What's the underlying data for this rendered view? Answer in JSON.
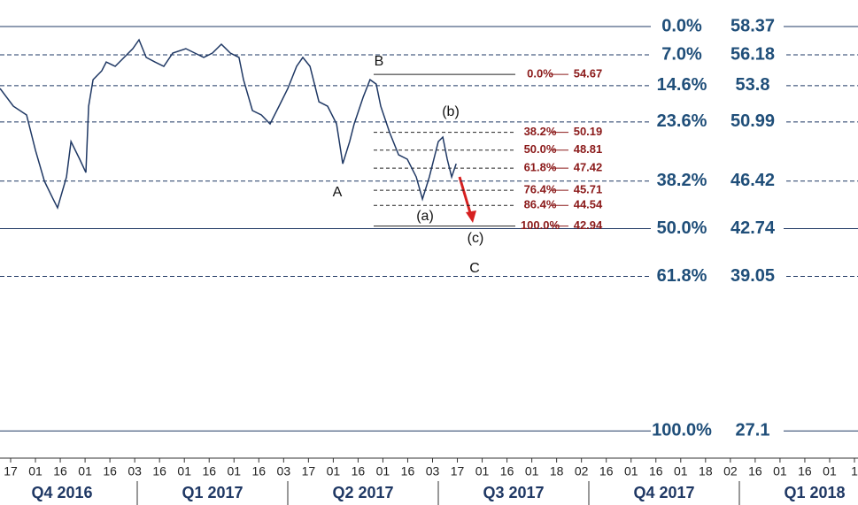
{
  "chart_data": {
    "type": "line",
    "ylim": [
      25,
      60.42
    ],
    "xlim": [
      -0.43,
      34.14
    ],
    "price": {
      "color": "#1f3864",
      "x": [
        -0.43,
        0.11,
        0.64,
        1.0,
        1.36,
        1.71,
        1.89,
        2.25,
        2.43,
        2.78,
        3.03,
        3.14,
        3.32,
        3.67,
        3.85,
        4.21,
        4.57,
        4.92,
        5.17,
        5.46,
        5.81,
        6.17,
        6.53,
        7.06,
        7.42,
        7.78,
        8.13,
        8.49,
        8.85,
        9.2,
        9.38,
        9.74,
        10.1,
        10.45,
        10.81,
        11.17,
        11.52,
        11.77,
        12.06,
        12.42,
        12.77,
        13.13,
        13.38,
        13.66,
        13.84,
        14.2,
        14.48,
        14.73,
        14.91,
        15.27,
        15.63,
        15.98,
        16.34,
        16.59,
        16.87,
        17.23,
        17.41,
        17.59,
        17.77,
        17.95
      ],
      "values": [
        53.58,
        52.21,
        51.53,
        48.79,
        46.4,
        45.03,
        44.35,
        46.74,
        49.47,
        48.11,
        47.08,
        52.21,
        54.26,
        54.94,
        55.63,
        55.29,
        55.98,
        56.66,
        57.34,
        55.98,
        55.63,
        55.29,
        56.32,
        56.66,
        56.32,
        55.98,
        56.32,
        57.0,
        56.32,
        55.98,
        54.26,
        51.87,
        51.53,
        50.84,
        52.21,
        53.58,
        55.29,
        55.98,
        55.29,
        52.55,
        52.21,
        50.84,
        47.76,
        49.47,
        50.84,
        52.9,
        54.26,
        53.92,
        52.21,
        50.16,
        48.45,
        48.11,
        46.74,
        45.03,
        46.74,
        49.47,
        49.82,
        48.11,
        46.74,
        47.76
      ]
    },
    "major_levels": [
      {
        "label": "0.0%",
        "value": 58.37
      },
      {
        "label": "7.0%",
        "value": 56.18
      },
      {
        "label": "14.6%",
        "value": 53.8
      },
      {
        "label": "23.6%",
        "value": 50.99
      },
      {
        "label": "38.2%",
        "value": 46.42
      },
      {
        "label": "50.0%",
        "value": 42.74
      },
      {
        "label": "61.8%",
        "value": 39.05
      },
      {
        "label": "100.0%",
        "value": 27.1
      }
    ],
    "minor_levels": [
      {
        "label": "0.0%",
        "value": 54.67
      },
      {
        "label": "38.2%",
        "value": 50.19
      },
      {
        "label": "50.0%",
        "value": 48.81
      },
      {
        "label": "61.8%",
        "value": 47.42
      },
      {
        "label": "76.4%",
        "value": 45.71
      },
      {
        "label": "86.4%",
        "value": 44.54
      },
      {
        "label": "100.0%",
        "value": 42.94
      }
    ],
    "annotations": [
      "B",
      "A",
      "(b)",
      "(a)",
      "(c)",
      "C"
    ],
    "x_tick_labels": [
      "17",
      "01",
      "16",
      "01",
      "16",
      "03",
      "16",
      "01",
      "16",
      "01",
      "16",
      "03",
      "17",
      "01",
      "16",
      "01",
      "16",
      "03",
      "17",
      "01",
      "16",
      "01",
      "18",
      "02",
      "16",
      "01",
      "16",
      "01",
      "18",
      "02",
      "16",
      "01",
      "16",
      "01",
      "1"
    ],
    "quarters": [
      "Q4 2016",
      "Q1 2017",
      "Q2 2017",
      "Q3 2017",
      "Q4 2017",
      "Q1 2018"
    ]
  }
}
